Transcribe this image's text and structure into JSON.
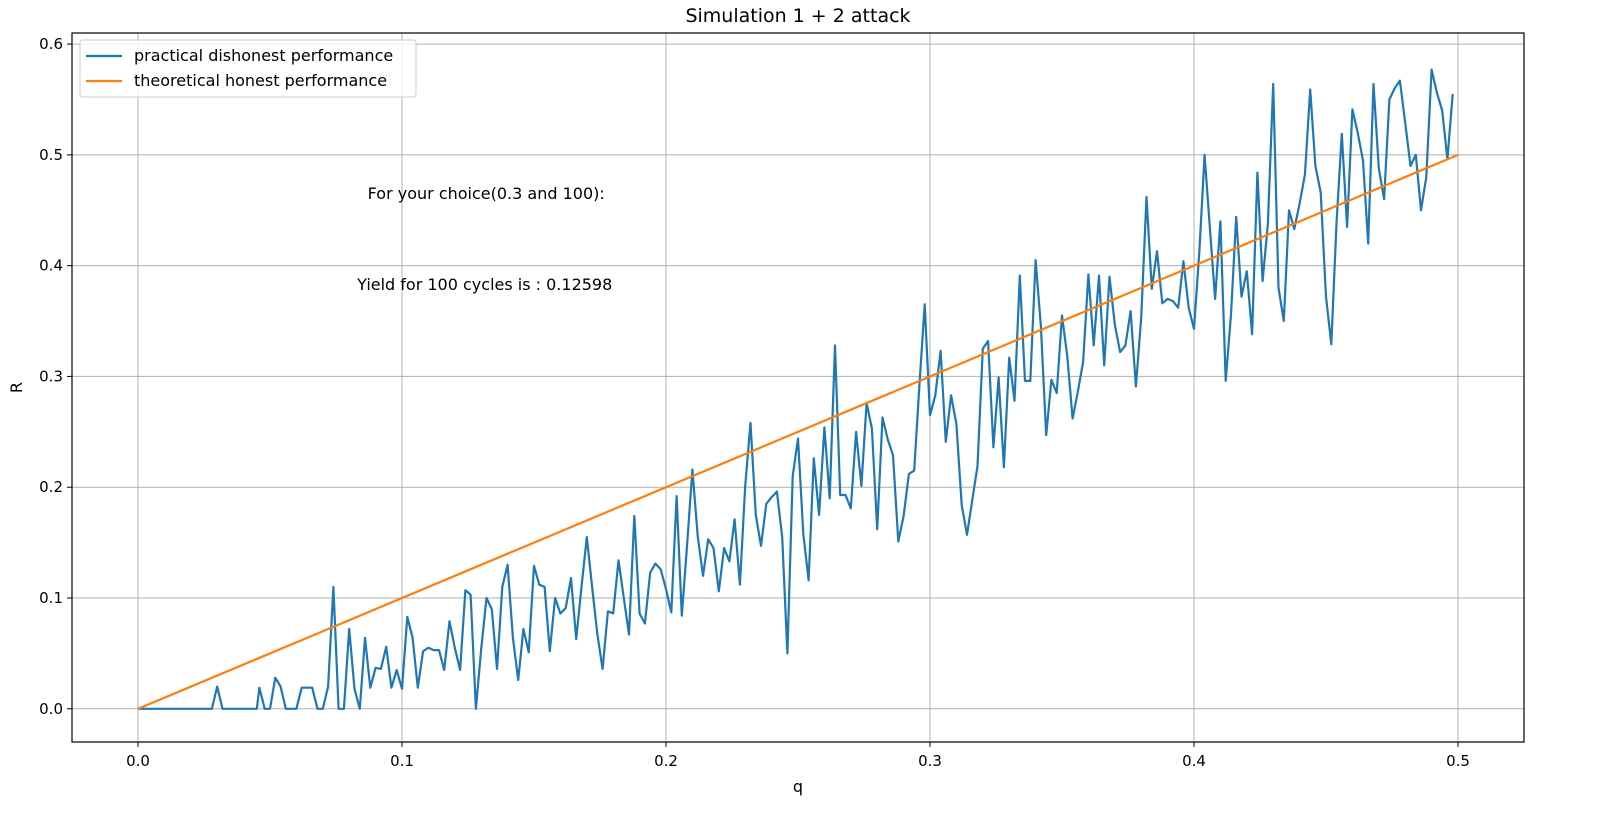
{
  "chart_data": {
    "type": "line",
    "title": "Simulation 1 + 2 attack",
    "xlabel": "q",
    "ylabel": "R",
    "xlim": [
      -0.025,
      0.525
    ],
    "ylim": [
      -0.03,
      0.61
    ],
    "grid": true,
    "legend_position": "top-left",
    "x_ticks": [
      0.0,
      0.1,
      0.2,
      0.3,
      0.4,
      0.5
    ],
    "x_tick_labels": [
      "0.0",
      "0.1",
      "0.2",
      "0.3",
      "0.4",
      "0.5"
    ],
    "y_ticks": [
      0.0,
      0.1,
      0.2,
      0.3,
      0.4,
      0.5,
      0.6
    ],
    "y_tick_labels": [
      "0.0",
      "0.1",
      "0.2",
      "0.3",
      "0.4",
      "0.5",
      "0.6"
    ],
    "annotations": [
      {
        "text": "For your choice(0.3 and 100):",
        "x": 0.087,
        "y": 0.46
      },
      {
        "text": "Yield for 100 cycles is : 0.12598",
        "x": 0.083,
        "y": 0.378
      }
    ],
    "series": [
      {
        "name": "practical dishonest performance",
        "color": "#1f77b4",
        "x": [
          0.0,
          0.028,
          0.03,
          0.032,
          0.045,
          0.046,
          0.048,
          0.05,
          0.052,
          0.054,
          0.056,
          0.058,
          0.06,
          0.062,
          0.064,
          0.066,
          0.068,
          0.07,
          0.072,
          0.074,
          0.076,
          0.078,
          0.08,
          0.082,
          0.084,
          0.086,
          0.088,
          0.09,
          0.092,
          0.094,
          0.096,
          0.098,
          0.1,
          0.102,
          0.104,
          0.106,
          0.108,
          0.11,
          0.112,
          0.114,
          0.116,
          0.118,
          0.12,
          0.122,
          0.124,
          0.126,
          0.128,
          0.13,
          0.132,
          0.134,
          0.136,
          0.138,
          0.14,
          0.142,
          0.144,
          0.146,
          0.148,
          0.15,
          0.152,
          0.154,
          0.156,
          0.158,
          0.16,
          0.162,
          0.164,
          0.166,
          0.168,
          0.17,
          0.172,
          0.174,
          0.176,
          0.178,
          0.18,
          0.182,
          0.184,
          0.186,
          0.188,
          0.19,
          0.192,
          0.194,
          0.196,
          0.198,
          0.2,
          0.202,
          0.204,
          0.206,
          0.208,
          0.21,
          0.212,
          0.214,
          0.216,
          0.218,
          0.22,
          0.222,
          0.224,
          0.226,
          0.228,
          0.23,
          0.232,
          0.234,
          0.236,
          0.238,
          0.24,
          0.242,
          0.244,
          0.246,
          0.248,
          0.25,
          0.252,
          0.254,
          0.256,
          0.258,
          0.26,
          0.262,
          0.264,
          0.266,
          0.268,
          0.27,
          0.272,
          0.274,
          0.276,
          0.278,
          0.28,
          0.282,
          0.284,
          0.286,
          0.288,
          0.29,
          0.292,
          0.294,
          0.296,
          0.298,
          0.3,
          0.302,
          0.304,
          0.306,
          0.308,
          0.31,
          0.312,
          0.314,
          0.316,
          0.318,
          0.32,
          0.322,
          0.324,
          0.326,
          0.328,
          0.33,
          0.332,
          0.334,
          0.336,
          0.338,
          0.34,
          0.342,
          0.344,
          0.346,
          0.348,
          0.35,
          0.352,
          0.354,
          0.356,
          0.358,
          0.36,
          0.362,
          0.364,
          0.366,
          0.368,
          0.37,
          0.372,
          0.374,
          0.376,
          0.378,
          0.38,
          0.382,
          0.384,
          0.386,
          0.388,
          0.39,
          0.392,
          0.394,
          0.396,
          0.398,
          0.4,
          0.402,
          0.404,
          0.406,
          0.408,
          0.41,
          0.412,
          0.414,
          0.416,
          0.418,
          0.42,
          0.422,
          0.424,
          0.426,
          0.428,
          0.43,
          0.432,
          0.434,
          0.436,
          0.438,
          0.44,
          0.442,
          0.444,
          0.446,
          0.448,
          0.45,
          0.452,
          0.454,
          0.456,
          0.458,
          0.46,
          0.462,
          0.464,
          0.466,
          0.468,
          0.47,
          0.472,
          0.474,
          0.476,
          0.478,
          0.48,
          0.482,
          0.484,
          0.486,
          0.488,
          0.49,
          0.492,
          0.494,
          0.496,
          0.498
        ],
        "y": [
          0.0,
          0.0,
          0.02,
          0.0,
          0.0,
          0.019,
          0.0,
          0.0,
          0.028,
          0.02,
          0.0,
          0.0,
          0.0,
          0.019,
          0.019,
          0.019,
          0.0,
          0.0,
          0.02,
          0.11,
          0.0,
          0.0,
          0.072,
          0.018,
          0.0,
          0.064,
          0.019,
          0.037,
          0.036,
          0.056,
          0.019,
          0.035,
          0.018,
          0.083,
          0.064,
          0.019,
          0.052,
          0.055,
          0.053,
          0.053,
          0.035,
          0.079,
          0.055,
          0.035,
          0.107,
          0.103,
          0.0,
          0.054,
          0.1,
          0.09,
          0.036,
          0.11,
          0.13,
          0.064,
          0.026,
          0.072,
          0.051,
          0.129,
          0.112,
          0.11,
          0.052,
          0.1,
          0.086,
          0.091,
          0.118,
          0.063,
          0.11,
          0.155,
          0.11,
          0.067,
          0.036,
          0.088,
          0.086,
          0.134,
          0.1,
          0.067,
          0.174,
          0.086,
          0.077,
          0.123,
          0.131,
          0.126,
          0.108,
          0.087,
          0.192,
          0.084,
          0.148,
          0.216,
          0.156,
          0.12,
          0.153,
          0.145,
          0.106,
          0.145,
          0.133,
          0.171,
          0.112,
          0.201,
          0.258,
          0.175,
          0.147,
          0.185,
          0.191,
          0.196,
          0.155,
          0.05,
          0.21,
          0.244,
          0.158,
          0.116,
          0.226,
          0.175,
          0.254,
          0.19,
          0.328,
          0.193,
          0.193,
          0.181,
          0.25,
          0.201,
          0.276,
          0.253,
          0.162,
          0.263,
          0.243,
          0.229,
          0.151,
          0.174,
          0.212,
          0.215,
          0.292,
          0.365,
          0.265,
          0.283,
          0.323,
          0.241,
          0.283,
          0.257,
          0.184,
          0.157,
          0.188,
          0.219,
          0.325,
          0.332,
          0.236,
          0.299,
          0.218,
          0.317,
          0.278,
          0.391,
          0.296,
          0.296,
          0.405,
          0.345,
          0.247,
          0.297,
          0.285,
          0.355,
          0.318,
          0.262,
          0.286,
          0.313,
          0.392,
          0.328,
          0.391,
          0.31,
          0.39,
          0.347,
          0.322,
          0.328,
          0.359,
          0.291,
          0.353,
          0.462,
          0.379,
          0.413,
          0.366,
          0.37,
          0.368,
          0.362,
          0.404,
          0.362,
          0.343,
          0.412,
          0.5,
          0.435,
          0.37,
          0.44,
          0.296,
          0.356,
          0.444,
          0.372,
          0.395,
          0.338,
          0.484,
          0.386,
          0.438,
          0.564,
          0.38,
          0.35,
          0.45,
          0.433,
          0.456,
          0.482,
          0.559,
          0.49,
          0.466,
          0.372,
          0.329,
          0.44,
          0.519,
          0.435,
          0.541,
          0.52,
          0.495,
          0.42,
          0.564,
          0.488,
          0.46,
          0.55,
          0.56,
          0.567,
          0.529,
          0.49,
          0.5,
          0.45,
          0.48,
          0.577,
          0.556,
          0.54,
          0.496,
          0.555
        ]
      },
      {
        "name": "theoretical honest performance",
        "color": "#ff7f0e",
        "x": [
          0.0,
          0.5
        ],
        "y": [
          0.0,
          0.5
        ]
      }
    ]
  }
}
